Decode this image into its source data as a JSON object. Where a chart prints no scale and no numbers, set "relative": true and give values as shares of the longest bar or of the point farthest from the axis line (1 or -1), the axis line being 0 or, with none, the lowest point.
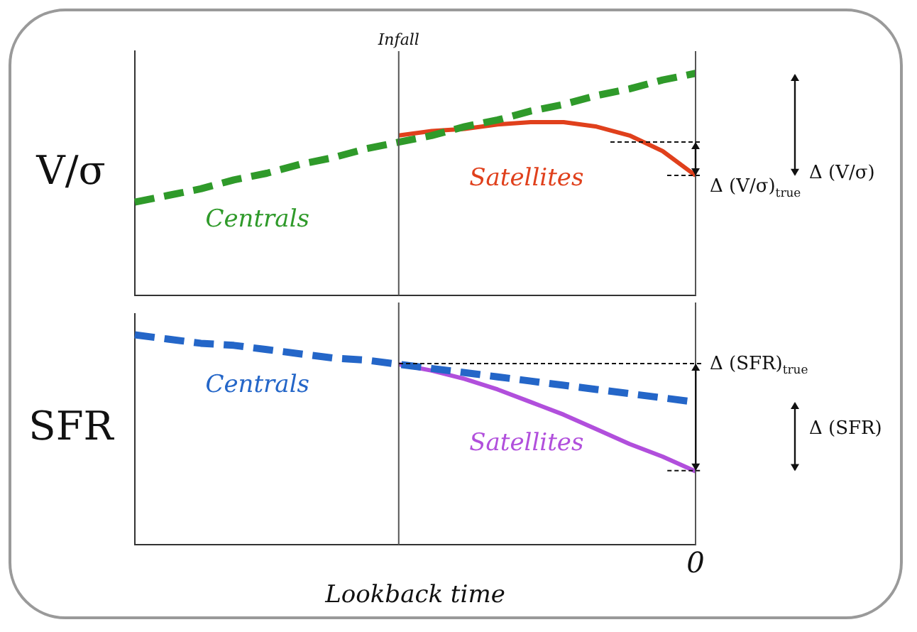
{
  "chart_data": [
    {
      "type": "line",
      "relative": true,
      "ylabel": "V/σ",
      "tick_labels": false,
      "marker": "none",
      "legend": false,
      "grid": false,
      "categories": [
        null,
        null,
        null,
        null,
        null,
        null,
        null,
        null,
        null,
        null,
        null,
        null,
        null,
        null,
        null,
        null,
        null,
        null
      ],
      "series": [
        {
          "name": "Centrals",
          "color": "#2f9a2a",
          "line_style": "dashed",
          "values": [
            0.42,
            0.45,
            0.48,
            0.52,
            0.55,
            0.59,
            0.62,
            0.66,
            0.69,
            0.72,
            0.76,
            0.79,
            0.83,
            0.86,
            0.9,
            0.93,
            0.97,
            1.0
          ]
        },
        {
          "name": "Satellites",
          "color": "#e0401c",
          "line_style": "solid",
          "values": [
            null,
            null,
            null,
            null,
            null,
            null,
            null,
            null,
            0.72,
            0.74,
            0.75,
            0.77,
            0.78,
            0.78,
            0.76,
            0.72,
            0.65,
            0.54
          ]
        }
      ],
      "annotations": [
        "Infall",
        "Δ (V/σ)",
        "Δ (V/σ)$_{true}$"
      ]
    },
    {
      "type": "line",
      "relative": true,
      "ylabel": "SFR",
      "xlabel": "Lookback time",
      "tick_labels": "x",
      "marker": "none",
      "legend": false,
      "grid": false,
      "categories": [
        null,
        null,
        null,
        null,
        null,
        null,
        null,
        null,
        null,
        null,
        null,
        null,
        null,
        null,
        null,
        null,
        null,
        null
      ],
      "series": [
        {
          "name": "Centrals",
          "color": "#2466c8",
          "line_style": "dashed",
          "values": [
            1.0,
            0.98,
            0.96,
            0.95,
            0.93,
            0.91,
            0.89,
            0.88,
            0.86,
            0.84,
            0.82,
            0.8,
            0.78,
            0.76,
            0.74,
            0.72,
            0.7,
            0.68
          ]
        },
        {
          "name": "Satellites",
          "color": "#b14fdc",
          "line_style": "solid",
          "values": [
            null,
            null,
            null,
            null,
            null,
            null,
            null,
            null,
            0.86,
            0.83,
            0.79,
            0.74,
            0.68,
            0.62,
            0.55,
            0.48,
            0.42,
            0.35
          ]
        }
      ],
      "annotations": [
        "0",
        "Δ (SFR)",
        "Δ (SFR)$_{true}$"
      ]
    }
  ]
}
